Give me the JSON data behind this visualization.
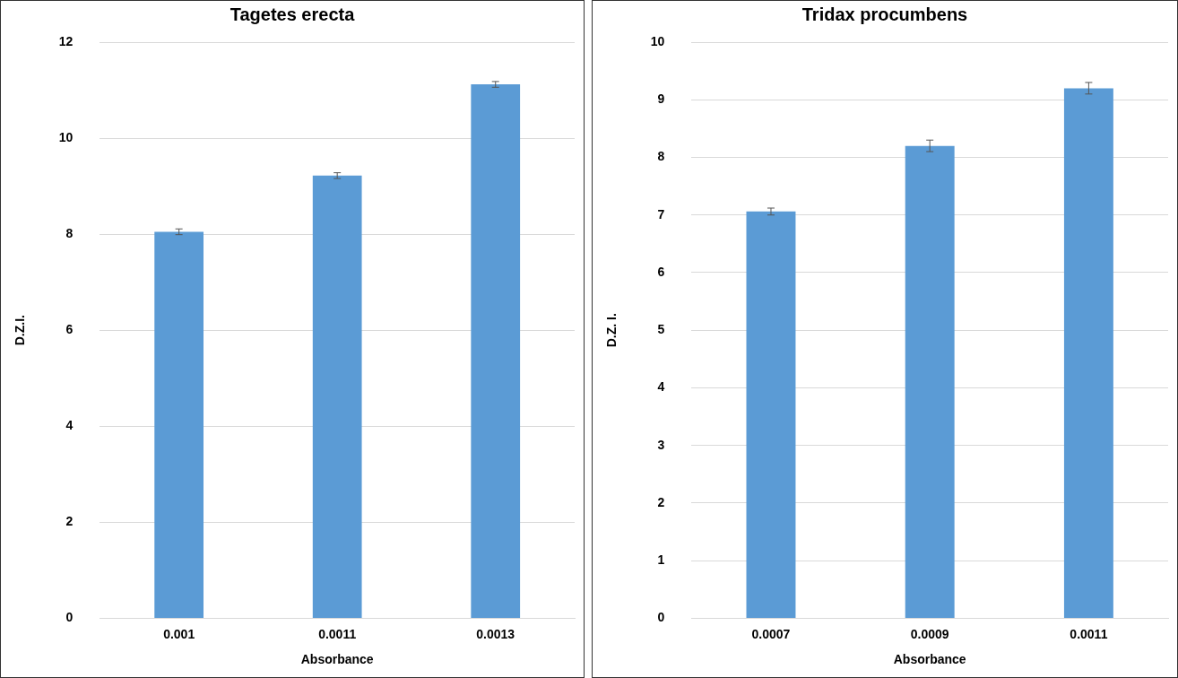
{
  "chart_data": [
    {
      "type": "bar",
      "title": "Tagetes erecta",
      "xlabel": "Absorbance",
      "ylabel": "D.Z.I.",
      "categories": [
        "0.001",
        "0.0011",
        "0.0013"
      ],
      "values": [
        8.05,
        9.22,
        11.12
      ],
      "errors": [
        0.06,
        0.06,
        0.06
      ],
      "color": "#5b9bd5",
      "ylim": [
        0,
        12
      ],
      "yticks": [
        0,
        2,
        4,
        6,
        8,
        10,
        12
      ],
      "grid": "y"
    },
    {
      "type": "bar",
      "title": "Tridax procumbens",
      "xlabel": "Absorbance",
      "ylabel": "D.Z. I.",
      "categories": [
        "0.0007",
        "0.0009",
        "0.0011"
      ],
      "values": [
        7.06,
        8.2,
        9.2
      ],
      "errors": [
        0.06,
        0.1,
        0.1
      ],
      "color": "#5b9bd5",
      "ylim": [
        0,
        10
      ],
      "yticks": [
        0,
        1,
        2,
        3,
        4,
        5,
        6,
        7,
        8,
        9,
        10
      ],
      "grid": "y"
    }
  ]
}
